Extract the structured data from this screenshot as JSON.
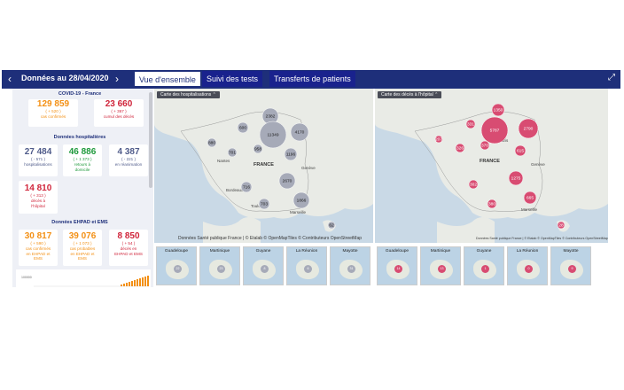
{
  "header": {
    "title": "Données au 28/04/2020",
    "prev_arrow": "‹",
    "next_arrow": "›",
    "tabs": [
      {
        "label": "Vue d'ensemble",
        "active": true
      },
      {
        "label": "Suivi des tests",
        "active": false
      },
      {
        "label": "Transferts de patients",
        "active": false
      }
    ],
    "expand_icon": "expand-icon"
  },
  "left": {
    "covid_title": "COVID-19 - France",
    "confirmed": {
      "value": "129 859",
      "delta": "( + 520 )",
      "label": "cas confirmés"
    },
    "deaths": {
      "value": "23 660",
      "delta": "( + 367 )",
      "label": "cumul des décès"
    },
    "hosp_title": "Données hospitalières",
    "hospitalized": {
      "value": "27 484",
      "delta": "( - 571 )",
      "label": "hospitalisations"
    },
    "returned": {
      "value": "46 886",
      "delta": "( + 1 373 )",
      "label1": "retours à",
      "label2": "domicile"
    },
    "icu": {
      "value": "4 387",
      "delta": "( - 221 )",
      "label": "en réanimation"
    },
    "hospital_deaths": {
      "value": "14 810",
      "delta": "( + 313 )",
      "label1": "décès à",
      "label2": "l'hôpital"
    },
    "ehpad_title": "Données EHPAD et EMS",
    "ehpad_confirmed": {
      "value": "30 817",
      "delta": "( + 590 )",
      "label1": "cas confirmés",
      "label2": "en EHPAD et",
      "label3": "EMS"
    },
    "ehpad_probable": {
      "value": "39 076",
      "delta": "( + 1 073 )",
      "label1": "cas probables",
      "label2": "en EHPAD et",
      "label3": "EMS"
    },
    "ehpad_deaths": {
      "value": "8 850",
      "delta": "( + 54 )",
      "label1": "décès en",
      "label2": "EHPAD et EMS"
    },
    "chart_ytick": "100000"
  },
  "map_hosp": {
    "button_label": "Carte des hospitalisations",
    "country_label": "FRANCE",
    "attribution": "Données Santé publique France | © Etalab © OpenMapTiles © Contributeurs OpenStreetMap",
    "bubbles": [
      "2382",
      "600",
      "11349",
      "4170",
      "880",
      "701",
      "958",
      "1196",
      "2670",
      "716",
      "703",
      "1866",
      "62"
    ],
    "cities": [
      "Paris",
      "Genève",
      "Marseille",
      "Nantes",
      "Bordeaux",
      "Toulouse"
    ],
    "dom": [
      {
        "name": "Guadeloupe",
        "value": "22"
      },
      {
        "name": "Martinique",
        "value": "23"
      },
      {
        "name": "Guyane",
        "value": "8"
      },
      {
        "name": "La Réunion",
        "value": "6"
      },
      {
        "name": "Mayotte",
        "value": "31"
      }
    ]
  },
  "map_deaths": {
    "button_label": "Carte des décès à l'hôpital",
    "country_label": "FRANCE",
    "attribution": "Données Santé publique France | © Etalab © OpenMapTiles © Contributeurs OpenStreetMap",
    "bubbles": [
      "1350",
      "331",
      "5787",
      "2790",
      "207",
      "370",
      "326",
      "615",
      "302",
      "1275",
      "380",
      "665",
      "28"
    ],
    "cities": [
      "Paris",
      "Genève",
      "Marseille"
    ],
    "dom": [
      {
        "name": "Guadeloupe",
        "value": "14"
      },
      {
        "name": "Martinique",
        "value": "13"
      },
      {
        "name": "Guyane",
        "value": "1"
      },
      {
        "name": "La Réunion",
        "value": "0"
      },
      {
        "name": "Mayotte",
        "value": "9"
      }
    ]
  },
  "colors": {
    "header": "#1e2f7a",
    "confirmed": "#f39015",
    "deaths": "#d0253b",
    "grey_bubble": "#a6aab8",
    "red_bubble": "#d84c72"
  }
}
